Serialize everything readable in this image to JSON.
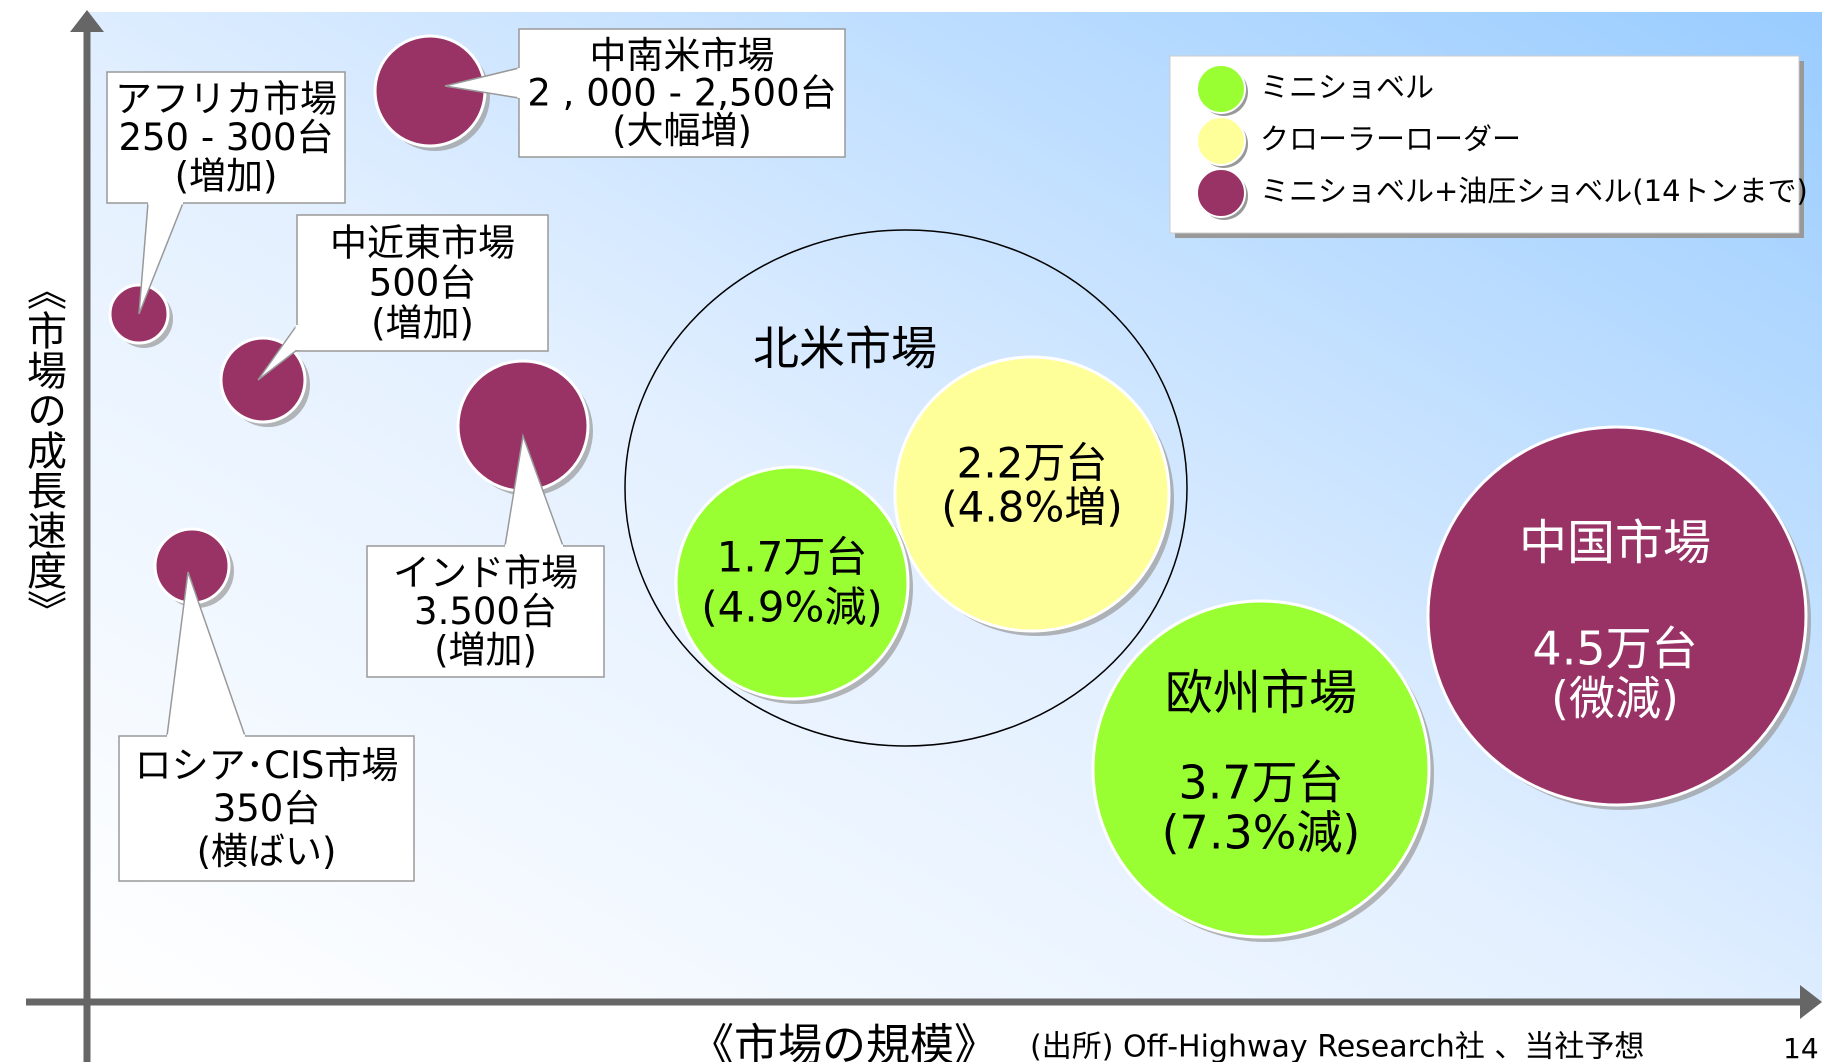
{
  "y_axis_label": "《市場の成長速度》",
  "x_axis_label": "《市場の規模》",
  "source": "(出所) Off-Highway Research社 、当社予想",
  "page_number": "14",
  "legend": [
    {
      "label": "ミニショベル",
      "color": "#99ff33"
    },
    {
      "label": "クローラーローダー",
      "color": "#ffff99"
    },
    {
      "label": "ミニショベル+油圧ショベル(14トンまで)",
      "color": "#993366"
    }
  ],
  "group_label": "北米市場",
  "bubbles": [
    {
      "color": "#993366",
      "lines": []
    },
    {
      "color": "#993366",
      "lines": []
    },
    {
      "color": "#993366",
      "lines": []
    },
    {
      "color": "#993366",
      "lines": []
    },
    {
      "color": "#993366",
      "lines": []
    },
    {
      "color": "#ffff99",
      "lines": [
        "2.2万台",
        "(4.8%増)"
      ]
    },
    {
      "color": "#99ff33",
      "lines": [
        "1.7万台",
        "(4.9%減)"
      ]
    },
    {
      "color": "#99ff33",
      "lines": [
        "欧州市場",
        "3.7万台",
        "(7.3%減)"
      ]
    },
    {
      "color": "#993366",
      "lines": [
        "中国市場",
        "4.5万台",
        "(微減)"
      ]
    }
  ],
  "callouts": [
    {
      "lines": [
        "中南米市場",
        "2 , 000 - 2,500台",
        "(大幅増)"
      ]
    },
    {
      "lines": [
        "アフリカ市場",
        "250 - 300台",
        "(増加)"
      ]
    },
    {
      "lines": [
        "中近東市場",
        "500台",
        "(増加)"
      ]
    },
    {
      "lines": [
        "インド市場",
        "3.500台",
        "(増加)"
      ]
    },
    {
      "lines": [
        "ロシア･CIS市場",
        "350台",
        "(横ばい)"
      ]
    }
  ]
}
